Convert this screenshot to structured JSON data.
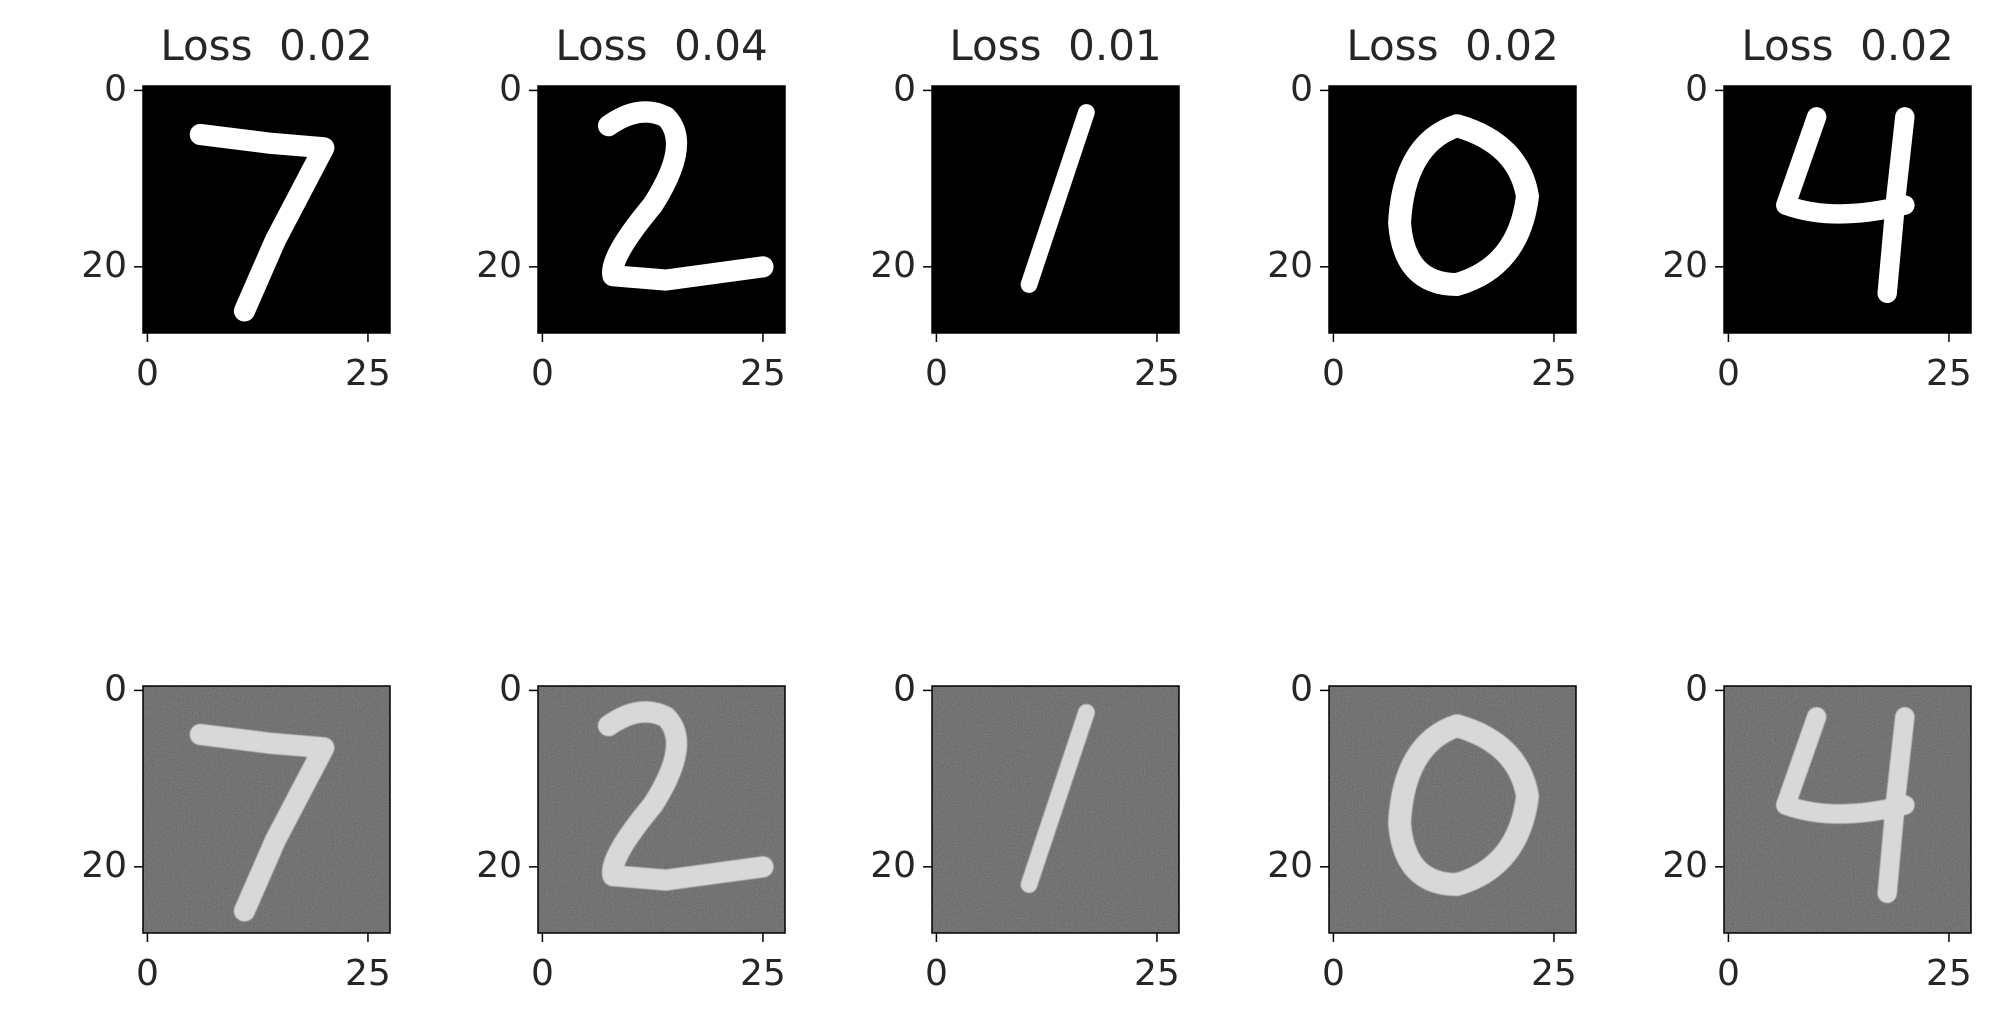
{
  "chart_data": [
    {
      "type": "image",
      "title": "Loss  0.02",
      "xlim": [
        -0.5,
        27.5
      ],
      "ylim": [
        27.5,
        -0.5
      ],
      "xticks": [
        0,
        25
      ],
      "yticks": [
        0,
        20
      ]
    },
    {
      "type": "image",
      "title": "Loss  0.04",
      "xlim": [
        -0.5,
        27.5
      ],
      "ylim": [
        27.5,
        -0.5
      ],
      "xticks": [
        0,
        25
      ],
      "yticks": [
        0,
        20
      ]
    },
    {
      "type": "image",
      "title": "Loss  0.01",
      "xlim": [
        -0.5,
        27.5
      ],
      "ylim": [
        27.5,
        -0.5
      ],
      "xticks": [
        0,
        25
      ],
      "yticks": [
        0,
        20
      ]
    },
    {
      "type": "image",
      "title": "Loss  0.02",
      "xlim": [
        -0.5,
        27.5
      ],
      "ylim": [
        27.5,
        -0.5
      ],
      "xticks": [
        0,
        25
      ],
      "yticks": [
        0,
        20
      ]
    },
    {
      "type": "image",
      "title": "Loss  0.02",
      "xlim": [
        -0.5,
        27.5
      ],
      "ylim": [
        27.5,
        -0.5
      ],
      "xticks": [
        0,
        25
      ],
      "yticks": [
        0,
        20
      ]
    },
    {
      "type": "image",
      "xlim": [
        -0.5,
        27.5
      ],
      "ylim": [
        27.5,
        -0.5
      ],
      "xticks": [
        0,
        25
      ],
      "yticks": [
        0,
        20
      ]
    },
    {
      "type": "image",
      "xlim": [
        -0.5,
        27.5
      ],
      "ylim": [
        27.5,
        -0.5
      ],
      "xticks": [
        0,
        25
      ],
      "yticks": [
        0,
        20
      ]
    },
    {
      "type": "image",
      "xlim": [
        -0.5,
        27.5
      ],
      "ylim": [
        27.5,
        -0.5
      ],
      "xticks": [
        0,
        25
      ],
      "yticks": [
        0,
        20
      ]
    },
    {
      "type": "image",
      "xlim": [
        -0.5,
        27.5
      ],
      "ylim": [
        27.5,
        -0.5
      ],
      "xticks": [
        0,
        25
      ],
      "yticks": [
        0,
        20
      ]
    },
    {
      "type": "image",
      "xlim": [
        -0.5,
        27.5
      ],
      "ylim": [
        27.5,
        -0.5
      ],
      "xticks": [
        0,
        25
      ],
      "yticks": [
        0,
        20
      ]
    }
  ]
}
